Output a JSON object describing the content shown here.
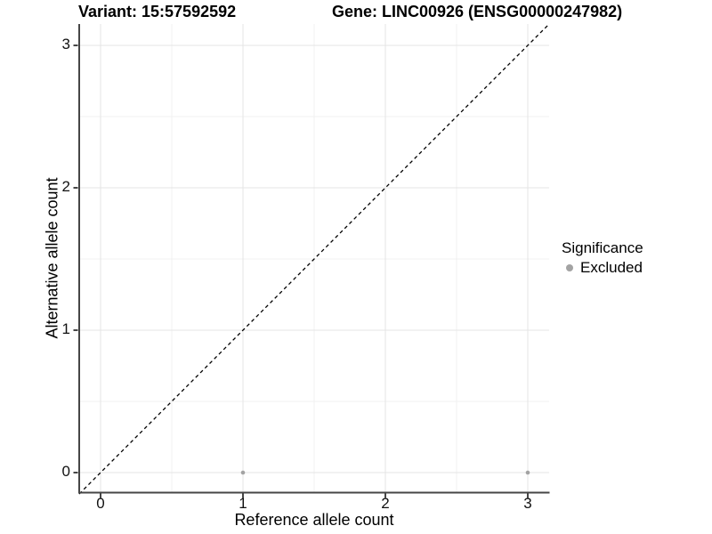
{
  "chart_data": {
    "type": "scatter",
    "titles": {
      "left": "Variant: 15:57592592",
      "right": "Gene: LINC00926 (ENSG00000247982)"
    },
    "xlabel": "Reference allele count",
    "ylabel": "Alternative allele count",
    "x_ticks": [
      0,
      1,
      2,
      3
    ],
    "y_ticks": [
      0,
      1,
      2,
      3
    ],
    "xlim": [
      -0.15,
      3.15
    ],
    "ylim": [
      -0.15,
      3.15
    ],
    "grid": {
      "major": true,
      "minor": true
    },
    "reference_line": {
      "style": "dashed",
      "equation": "y = x",
      "color": "#000000"
    },
    "series": [
      {
        "name": "Excluded",
        "color": "#a3a3a3",
        "points": [
          {
            "x": 1,
            "y": 0
          },
          {
            "x": 3,
            "y": 0
          }
        ]
      }
    ],
    "legend": {
      "title": "Significance",
      "position": "right",
      "entries": [
        {
          "label": "Excluded",
          "marker_color": "#a3a3a3"
        }
      ]
    },
    "colors": {
      "grid_major": "#e4e4e4",
      "grid_minor": "#f0f0f0",
      "axis_line": "#464646",
      "tick_text": "#111111",
      "background": "#ffffff"
    }
  }
}
